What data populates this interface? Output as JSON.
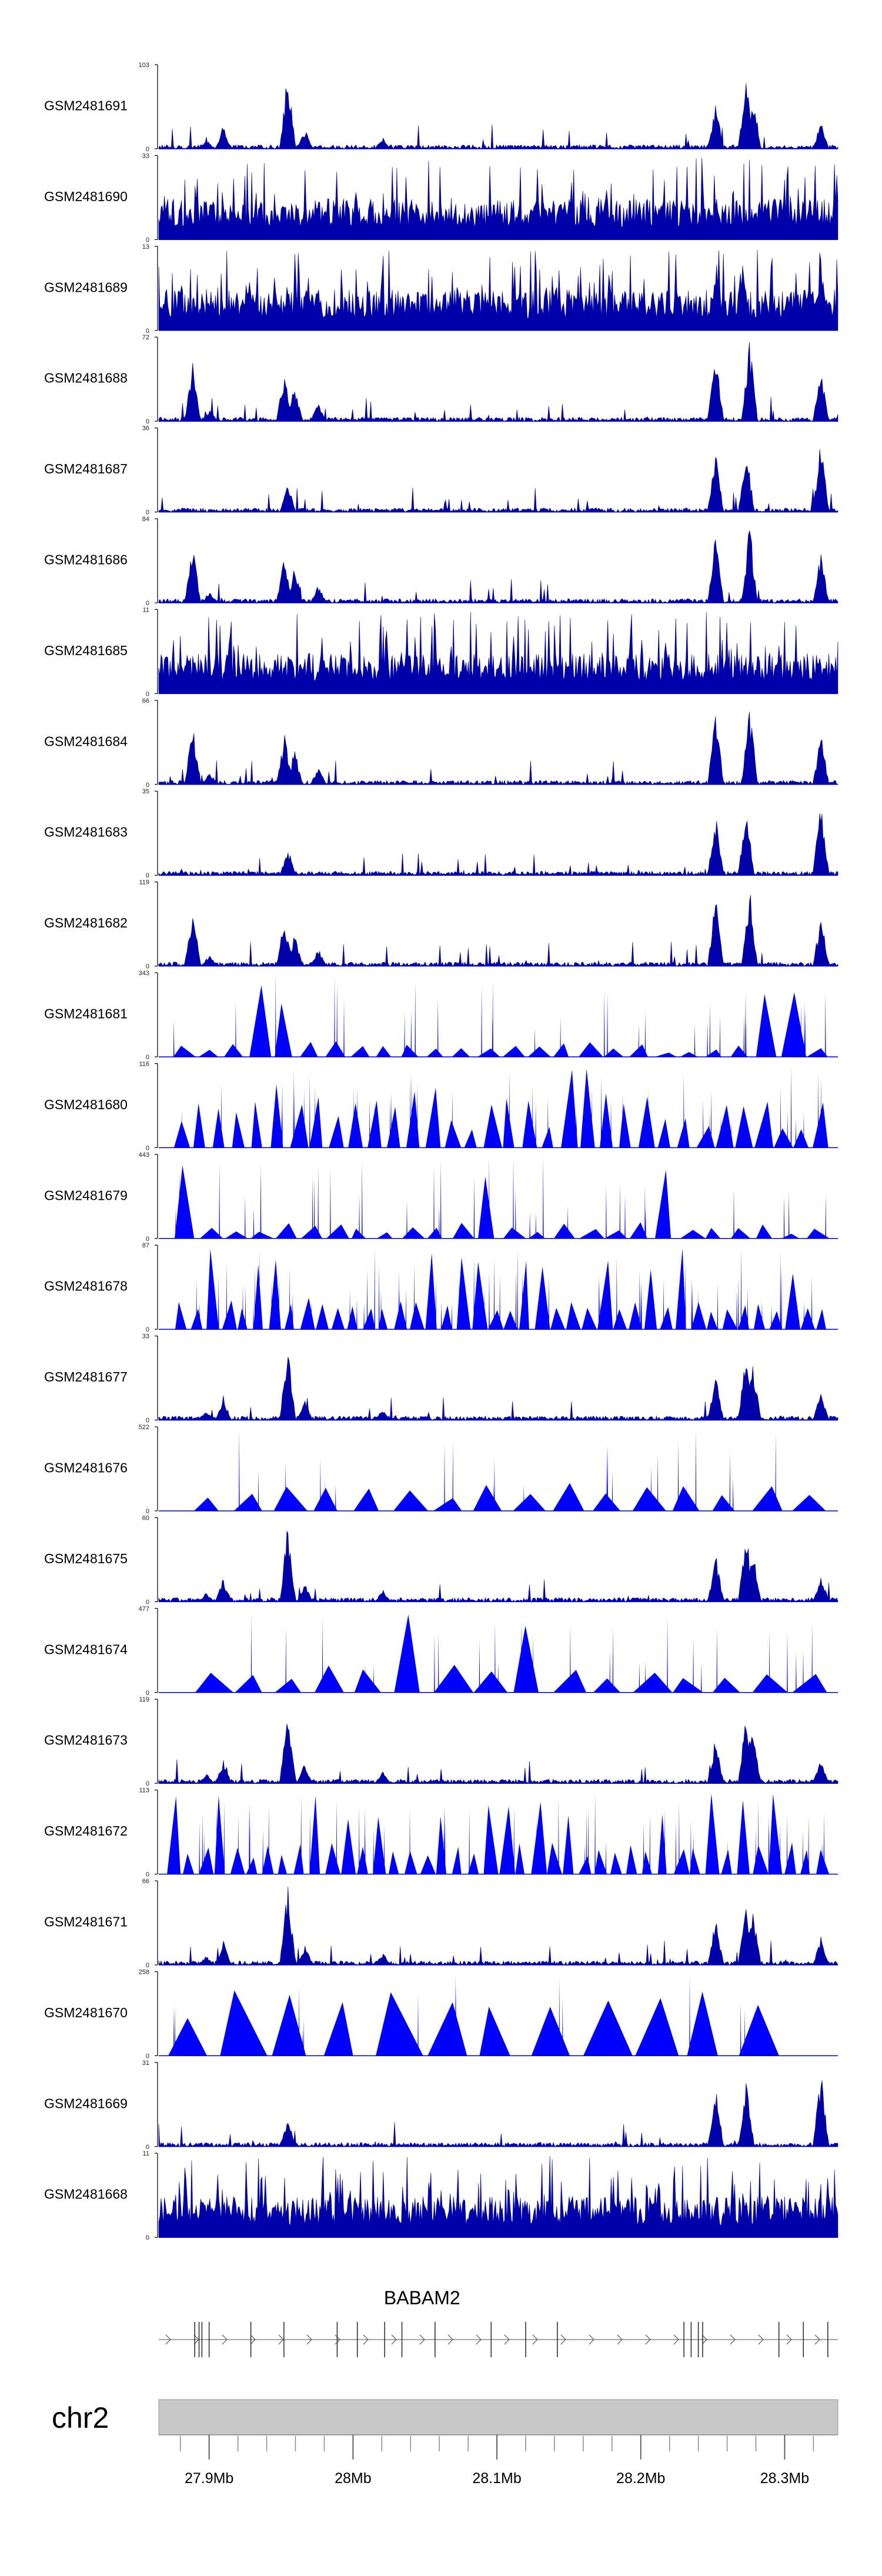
{
  "chart_data": {
    "type": "genome-tracks",
    "title": "",
    "chromosome": "chr2",
    "xlim_mb": [
      27.865,
      28.337
    ],
    "x_ticks": [
      {
        "value": 27.9,
        "label": "27.9Mb"
      },
      {
        "value": 28.0,
        "label": "28Mb"
      },
      {
        "value": 28.1,
        "label": "28.1Mb"
      },
      {
        "value": 28.2,
        "label": "28.2Mb"
      },
      {
        "value": 28.3,
        "label": "28.3Mb"
      }
    ],
    "gene": {
      "name": "BABAM2",
      "strand": "+",
      "exons_mb": [
        27.89,
        27.893,
        27.895,
        27.9,
        27.929,
        27.952,
        27.989,
        28.003,
        28.022,
        28.034,
        28.057,
        28.096,
        28.12,
        28.142,
        28.23,
        28.235,
        28.24,
        28.243,
        28.296,
        28.313,
        28.33
      ]
    },
    "tracks": [
      {
        "name": "GSM2481691",
        "ymax": 103,
        "style": "signal",
        "profile": "peaks_a"
      },
      {
        "name": "GSM2481690",
        "ymax": 33,
        "style": "signal",
        "profile": "noisy"
      },
      {
        "name": "GSM2481689",
        "ymax": 13,
        "style": "signal",
        "profile": "noisy_peaks"
      },
      {
        "name": "GSM2481688",
        "ymax": 72,
        "style": "signal",
        "profile": "peaks_b"
      },
      {
        "name": "GSM2481687",
        "ymax": 36,
        "style": "signal",
        "profile": "peaks_c"
      },
      {
        "name": "GSM2481686",
        "ymax": 84,
        "style": "signal",
        "profile": "peaks_b"
      },
      {
        "name": "GSM2481685",
        "ymax": 11,
        "style": "signal",
        "profile": "noisy"
      },
      {
        "name": "GSM2481684",
        "ymax": 66,
        "style": "signal",
        "profile": "peaks_b"
      },
      {
        "name": "GSM2481683",
        "ymax": 35,
        "style": "signal",
        "profile": "peaks_c"
      },
      {
        "name": "GSM2481682",
        "ymax": 119,
        "style": "signal",
        "profile": "peaks_b"
      },
      {
        "name": "GSM2481681",
        "ymax": 343,
        "style": "sparse",
        "profile": "sparse_a"
      },
      {
        "name": "GSM2481680",
        "ymax": 116,
        "style": "sparse",
        "profile": "sparse_b"
      },
      {
        "name": "GSM2481679",
        "ymax": 443,
        "style": "sparse",
        "profile": "sparse_a"
      },
      {
        "name": "GSM2481678",
        "ymax": 87,
        "style": "sparse",
        "profile": "sparse_dense"
      },
      {
        "name": "GSM2481677",
        "ymax": 33,
        "style": "signal",
        "profile": "peaks_a"
      },
      {
        "name": "GSM2481676",
        "ymax": 522,
        "style": "sparse",
        "profile": "sparse_c"
      },
      {
        "name": "GSM2481675",
        "ymax": 60,
        "style": "signal",
        "profile": "peaks_a"
      },
      {
        "name": "GSM2481674",
        "ymax": 477,
        "style": "sparse",
        "profile": "sparse_c"
      },
      {
        "name": "GSM2481673",
        "ymax": 119,
        "style": "signal",
        "profile": "peaks_a"
      },
      {
        "name": "GSM2481672",
        "ymax": 113,
        "style": "sparse",
        "profile": "sparse_dense"
      },
      {
        "name": "GSM2481671",
        "ymax": 66,
        "style": "signal",
        "profile": "peaks_a"
      },
      {
        "name": "GSM2481670",
        "ymax": 258,
        "style": "sparse",
        "profile": "sparse_d"
      },
      {
        "name": "GSM2481669",
        "ymax": 31,
        "style": "signal",
        "profile": "peaks_c"
      },
      {
        "name": "GSM2481668",
        "ymax": 11,
        "style": "signal",
        "profile": "noisy"
      }
    ],
    "y_min_label": "0",
    "signal_color": "#0000aa",
    "sparse_color": "#0000ff",
    "ideogram_color": "#c8c8c8"
  }
}
